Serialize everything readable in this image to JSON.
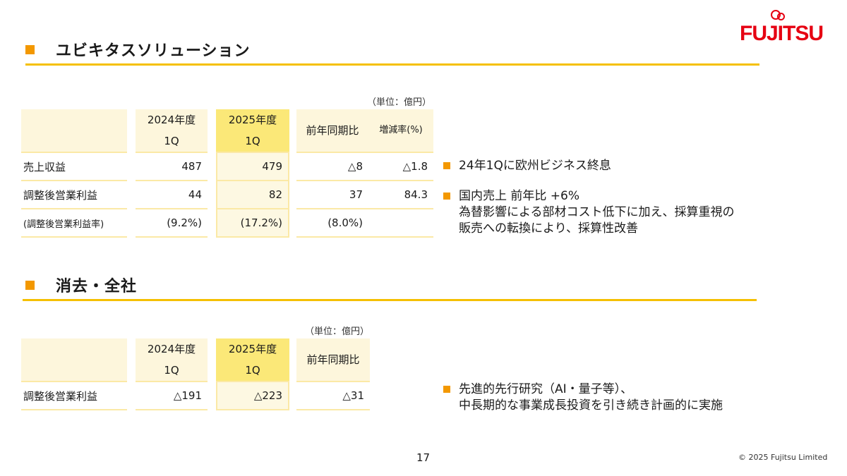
{
  "logo": {
    "text": "FUJITSU"
  },
  "section1": {
    "title": "ユビキタスソリューション",
    "unit": "（単位：億円）",
    "headers": {
      "y2024": [
        "2024年度",
        "1Q"
      ],
      "y2025": [
        "2025年度",
        "1Q"
      ],
      "yoy": "前年同期比",
      "rate": "増減率(%)"
    },
    "rows": [
      {
        "label": "売上収益",
        "y2024": "487",
        "y2025": "479",
        "yoy": "△8",
        "rate": "△1.8"
      },
      {
        "label": "調整後営業利益",
        "y2024": "44",
        "y2025": "82",
        "yoy": "37",
        "rate": "84.3"
      },
      {
        "label": "(調整後営業利益率)",
        "y2024": "(9.2%)",
        "y2025": "(17.2%)",
        "yoy": "(8.0%)",
        "rate": ""
      }
    ],
    "bullets": [
      [
        "24年1Qに欧州ビジネス終息"
      ],
      [
        "国内売上 前年比 +6%",
        "為替影響による部材コスト低下に加え、採算重視の",
        "販売への転換により、採算性改善"
      ]
    ]
  },
  "section2": {
    "title": "消去・全社",
    "unit": "（単位：億円）",
    "headers": {
      "y2024": [
        "2024年度",
        "1Q"
      ],
      "y2025": [
        "2025年度",
        "1Q"
      ],
      "yoy": "前年同期比"
    },
    "rows": [
      {
        "label": "調整後営業利益",
        "y2024": "△191",
        "y2025": "△223",
        "yoy": "△31"
      }
    ],
    "bullets": [
      [
        "先進的先行研究（AI・量子等）、",
        "中長期的な事業成長投資を引き続き計画的に実施"
      ]
    ]
  },
  "footer": {
    "page": "17",
    "copyright": "© 2025 Fujitsu Limited"
  },
  "colors": {
    "accent": "#f39800",
    "rule": "#f5c000",
    "highlight": "#fbe878",
    "brand": "#e60012"
  }
}
